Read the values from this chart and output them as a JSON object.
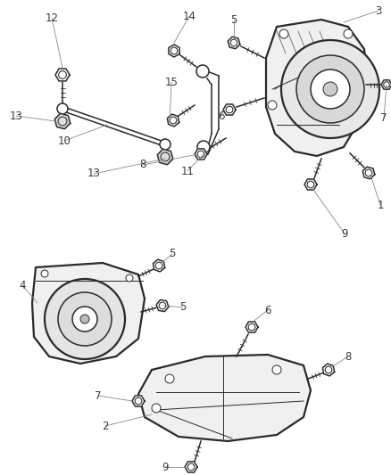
{
  "bg_color": "#ffffff",
  "line_color": "#2a2a2a",
  "label_color": "#3a3a3a",
  "leader_color": "#888888",
  "figsize": [
    4.38,
    5.33
  ],
  "dpi": 100,
  "lw_thick": 1.6,
  "lw_med": 1.1,
  "lw_thin": 0.7,
  "label_fs": 8.5
}
